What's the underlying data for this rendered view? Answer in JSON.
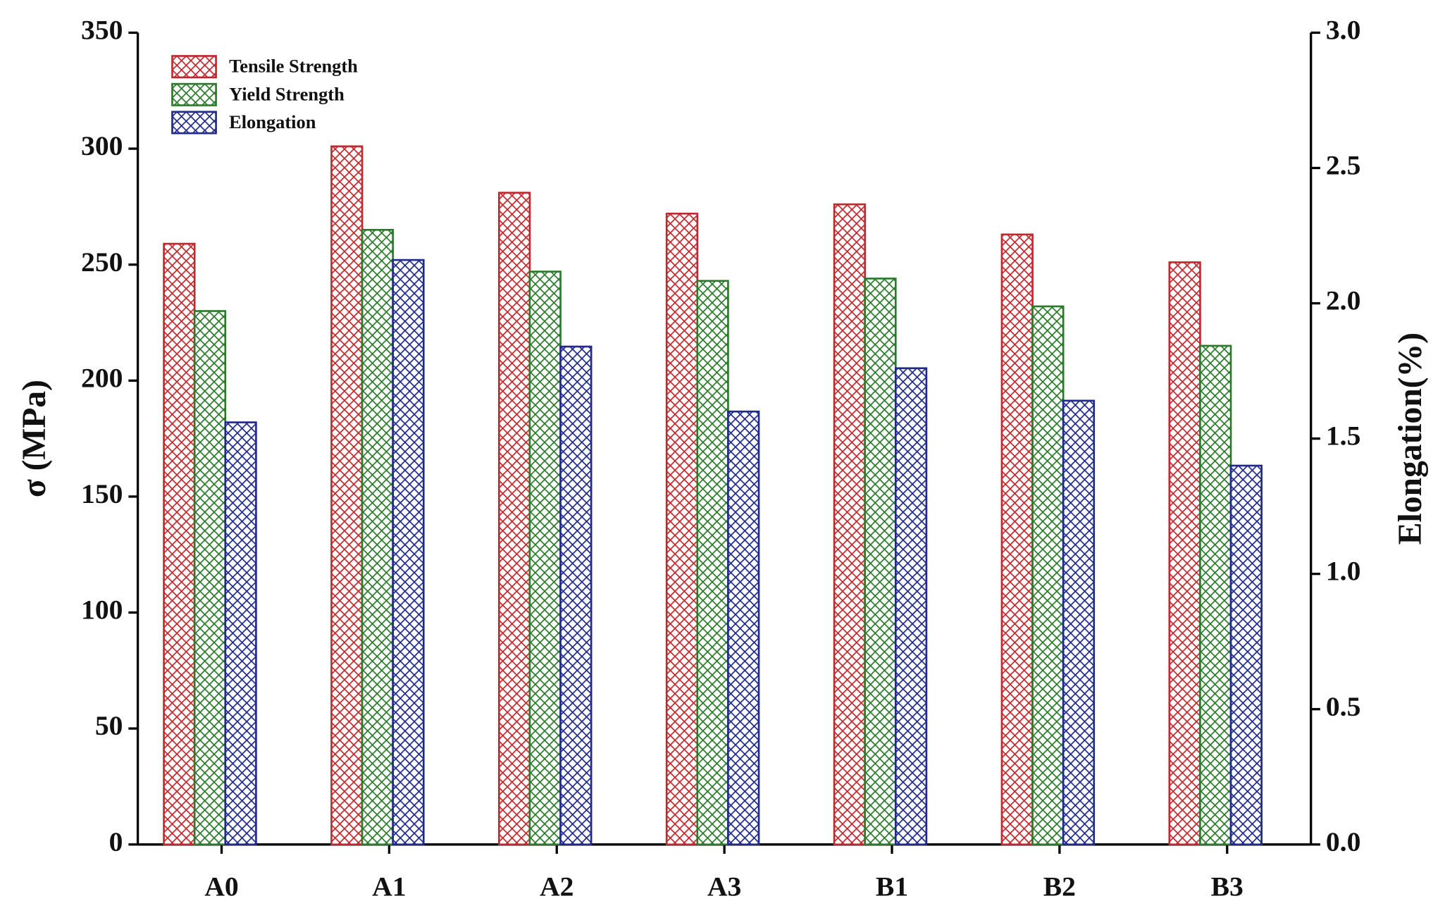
{
  "chart_data": {
    "type": "bar",
    "categories": [
      "A0",
      "A1",
      "A2",
      "A3",
      "B1",
      "B2",
      "B3"
    ],
    "series": [
      {
        "name": "Tensile Strength",
        "color": "#c0282d",
        "values": [
          259,
          301,
          281,
          272,
          276,
          263,
          251
        ]
      },
      {
        "name": "Yield Strength",
        "color": "#2a7a2a",
        "values": [
          230,
          265,
          247,
          243,
          244,
          232,
          215
        ]
      },
      {
        "name": "Elongation",
        "color": "#1f2a8a",
        "axis": "y2",
        "values": [
          1.56,
          2.16,
          1.84,
          1.6,
          1.76,
          1.64,
          1.4
        ]
      }
    ],
    "ylabel": "σ (MPa)",
    "y2label": "Elongation(%)",
    "ylim": [
      0,
      350
    ],
    "yticks": [
      0,
      50,
      100,
      150,
      200,
      250,
      300,
      350
    ],
    "y2lim": [
      0,
      3.0
    ],
    "y2ticks": [
      {
        "value": 0,
        "label": "0.0"
      },
      0.5,
      {
        "value": 1,
        "label": "1.0"
      },
      1.5,
      {
        "value": 2,
        "label": "2.0"
      },
      2.5,
      {
        "value": 3,
        "label": "3.0"
      }
    ],
    "legend": "upper left",
    "pattern": "crosshatch"
  }
}
